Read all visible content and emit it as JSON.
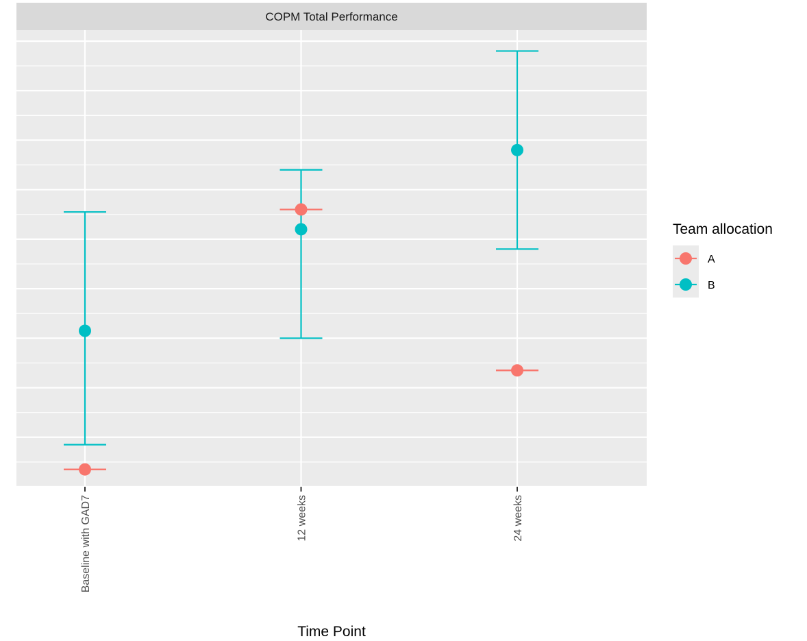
{
  "chart_data": {
    "type": "scatter",
    "facet_title": "COPM Total Performance",
    "xlabel": "Time Point",
    "ylabel": "",
    "categories": [
      "Baseline with GAD7",
      "12 weeks",
      "24 weeks"
    ],
    "ylim": [
      0,
      9
    ],
    "y_ticks_labeled": false,
    "grid": true,
    "legend": {
      "title": "Team allocation",
      "placement": "right",
      "entries": [
        "A",
        "B"
      ]
    },
    "series": [
      {
        "name": "A",
        "color": "#F8766D",
        "values": [
          0.35,
          5.6,
          2.35
        ],
        "error_low": [
          0.35,
          5.6,
          2.35
        ],
        "error_high": [
          0.35,
          5.6,
          2.35
        ]
      },
      {
        "name": "B",
        "color": "#00BFC4",
        "values": [
          3.15,
          5.2,
          6.8
        ],
        "error_low": [
          0.85,
          3.0,
          4.8
        ],
        "error_high": [
          5.55,
          6.4,
          8.8
        ]
      }
    ]
  }
}
